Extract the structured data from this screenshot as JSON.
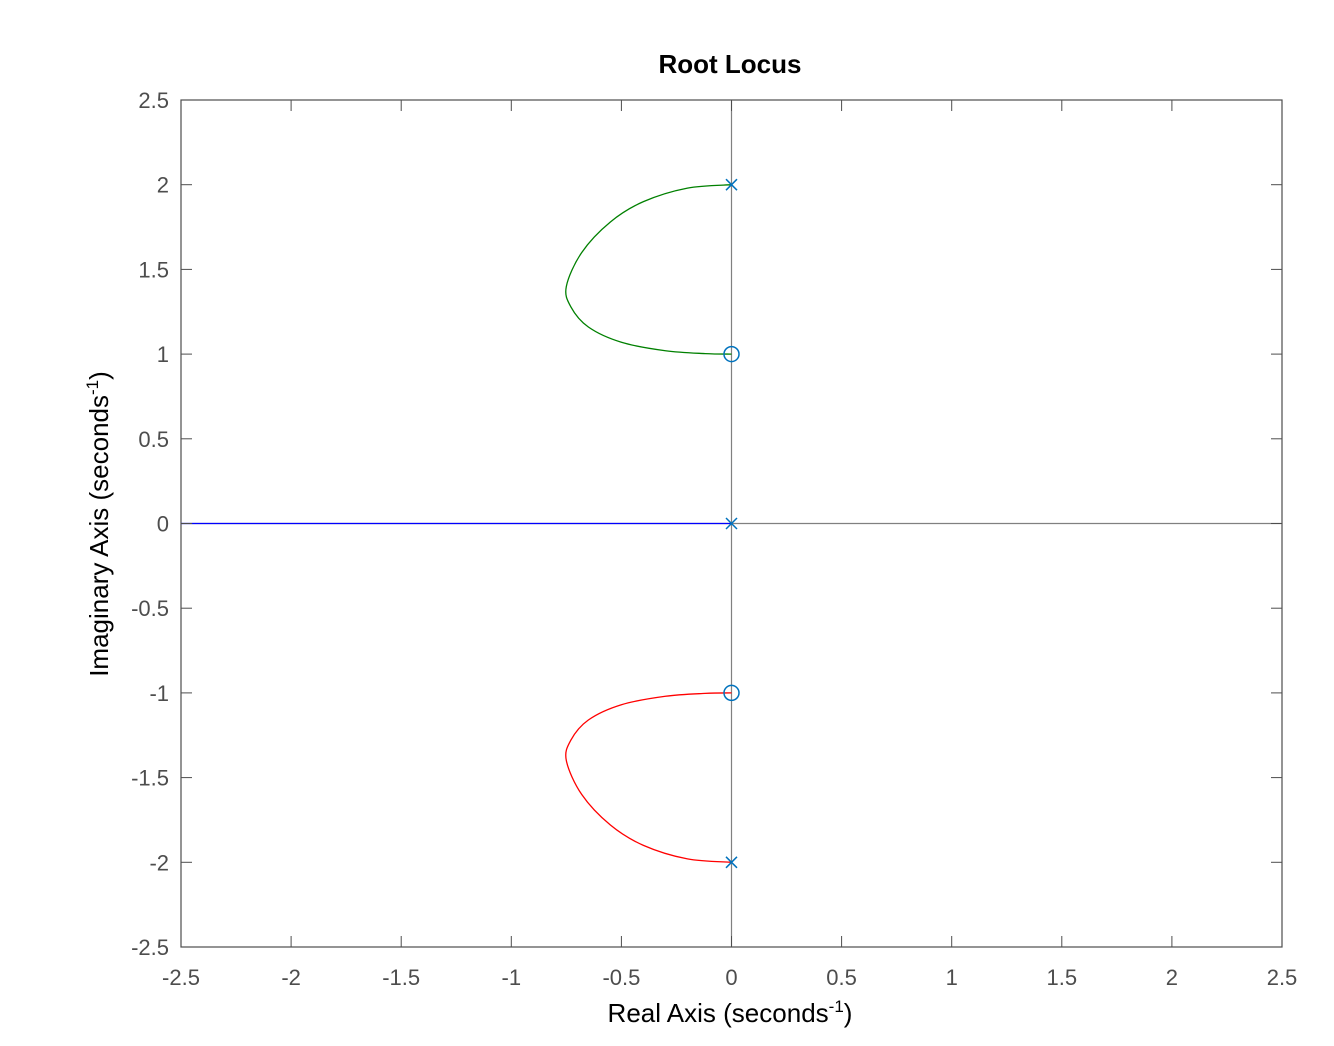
{
  "chart_data": {
    "type": "line",
    "title": "Root Locus",
    "xlabel": {
      "base": "Real  Axis  (seconds",
      "sup": "-1",
      "tail": ")"
    },
    "ylabel": {
      "base": "Imaginary  Axis  (seconds",
      "sup": "-1",
      "tail": ")"
    },
    "xlim": [
      -2.5,
      2.5
    ],
    "ylim": [
      -2.5,
      2.5
    ],
    "xticks": [
      -2.5,
      -2,
      -1.5,
      -1,
      -0.5,
      0,
      0.5,
      1,
      1.5,
      2,
      2.5
    ],
    "yticks": [
      -2.5,
      -2,
      -1.5,
      -1,
      -0.5,
      0,
      0.5,
      1,
      1.5,
      2,
      2.5
    ],
    "xtick_labels": [
      "-2.5",
      "-2",
      "-1.5",
      "-1",
      "-0.5",
      "0",
      "0.5",
      "1",
      "1.5",
      "2",
      "2.5"
    ],
    "ytick_labels": [
      "-2.5",
      "-2",
      "-1.5",
      "-1",
      "-0.5",
      "0",
      "0.5",
      "1",
      "1.5",
      "2",
      "2.5"
    ],
    "grid": false,
    "series": [
      {
        "color": "#0000ff",
        "x": [
          0,
          -2.5
        ],
        "y": [
          0,
          0
        ]
      },
      {
        "color": "#008000",
        "x": [
          0,
          -0.2,
          -0.4,
          -0.55,
          -0.68,
          -0.75,
          -0.73,
          -0.65,
          -0.5,
          -0.3,
          -0.12,
          0
        ],
        "y": [
          2,
          1.98,
          1.9,
          1.78,
          1.6,
          1.4,
          1.28,
          1.16,
          1.07,
          1.02,
          1.003,
          1
        ]
      },
      {
        "color": "#ff0000",
        "x": [
          0,
          -0.2,
          -0.4,
          -0.55,
          -0.68,
          -0.75,
          -0.73,
          -0.65,
          -0.5,
          -0.3,
          -0.12,
          0
        ],
        "y": [
          -2,
          -1.98,
          -1.9,
          -1.78,
          -1.6,
          -1.4,
          -1.28,
          -1.16,
          -1.07,
          -1.02,
          -1.003,
          -1
        ]
      }
    ],
    "poles": [
      {
        "x": 0,
        "y": 2
      },
      {
        "x": 0,
        "y": 0
      },
      {
        "x": 0,
        "y": -2
      }
    ],
    "zeros": [
      {
        "x": 0,
        "y": 1
      },
      {
        "x": 0,
        "y": -1
      }
    ],
    "marker_color": "#0072bd",
    "axis_color": "#4d4d4d"
  }
}
